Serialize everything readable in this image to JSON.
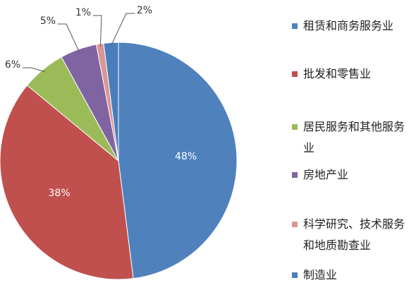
{
  "chart_data": {
    "type": "pie",
    "categories": [
      "租赁和商务服务业",
      "批发和零售业",
      "居民服务和其他服务业",
      "房地产业",
      "科学研究、技术服务和地质勘查业",
      "制造业"
    ],
    "values": [
      48,
      38,
      6,
      5,
      1,
      2
    ],
    "value_labels": [
      "48%",
      "38%",
      "6%",
      "5%",
      "1%",
      "2%"
    ],
    "colors": [
      "#4f81bd",
      "#c0504d",
      "#9bbb59",
      "#8064a2",
      "#d99694",
      "#4a7ebb"
    ]
  }
}
